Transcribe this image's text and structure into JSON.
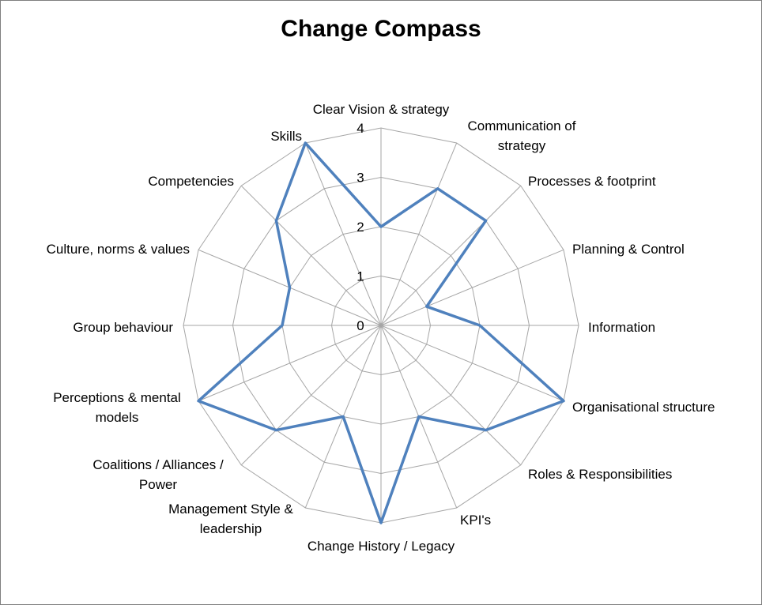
{
  "chart_data": {
    "type": "radar",
    "title": "Change Compass",
    "rlim": [
      0,
      4
    ],
    "ticks": [
      "0",
      "1",
      "2",
      "3",
      "4"
    ],
    "grid": true,
    "legend": "none",
    "categories": [
      "Clear Vision & strategy",
      "Communication of strategy",
      "Processes & footprint",
      "Planning & Control",
      "Information",
      "Organisational structure",
      "Roles & Responsibilities",
      "KPI's",
      "Change History / Legacy",
      "Management Style & leadership",
      "Coalitions / Alliances / Power",
      "Perceptions & mental models",
      "Group behaviour",
      "Culture, norms & values",
      "Competencies",
      "Skills"
    ],
    "series": [
      {
        "values": [
          2,
          3,
          3,
          1,
          2,
          4,
          3,
          2,
          4,
          2,
          3,
          4,
          2,
          2,
          3,
          4
        ],
        "color": "#4f81bd"
      }
    ]
  }
}
